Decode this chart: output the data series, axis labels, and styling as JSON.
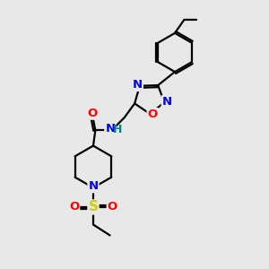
{
  "bg_color": "#e8e8e8",
  "bond_color": "#000000",
  "bond_width": 1.6,
  "atom_colors": {
    "N": "#0000ee",
    "O": "#ff0000",
    "S": "#cccc00",
    "H": "#008080"
  },
  "font_size": 9.5,
  "s_font_size": 11
}
